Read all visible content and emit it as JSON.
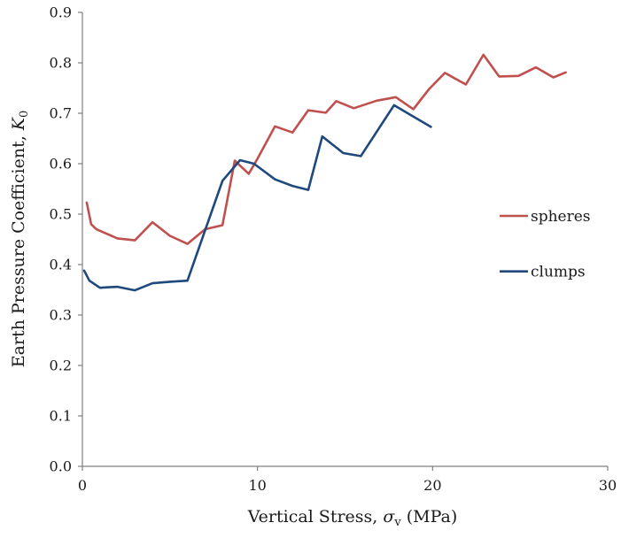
{
  "chart_data": {
    "type": "line",
    "xlabel": {
      "text": "Vertical Stress, ",
      "symbol": "σ",
      "subscript": "v",
      "unit": " (MPa)"
    },
    "ylabel": {
      "text": "Earth Pressure Coefficient, ",
      "symbol": "K",
      "subscript": "0"
    },
    "xlim": [
      0,
      30
    ],
    "ylim": [
      0,
      0.9
    ],
    "x_ticks": [
      0,
      10,
      20,
      30
    ],
    "x_tick_labels": [
      "0",
      "10",
      "20",
      "30"
    ],
    "y_ticks": [
      0,
      0.1,
      0.2,
      0.3,
      0.4,
      0.5,
      0.6,
      0.7,
      0.8,
      0.9
    ],
    "y_tick_labels": [
      "0.0",
      "0.1",
      "0.2",
      "0.3",
      "0.4",
      "0.5",
      "0.6",
      "0.7",
      "0.8",
      "0.9"
    ],
    "grid": false,
    "legend_position": "right",
    "series": [
      {
        "name": "spheres",
        "color": "#c0504d",
        "points": [
          [
            0.25,
            0.523
          ],
          [
            0.5,
            0.48
          ],
          [
            0.8,
            0.47
          ],
          [
            1.0,
            0.467
          ],
          [
            2.0,
            0.452
          ],
          [
            3.0,
            0.448
          ],
          [
            4.0,
            0.484
          ],
          [
            5.0,
            0.457
          ],
          [
            6.0,
            0.441
          ],
          [
            7.0,
            0.47
          ],
          [
            8.0,
            0.478
          ],
          [
            8.7,
            0.606
          ],
          [
            9.5,
            0.58
          ],
          [
            10.0,
            0.61
          ],
          [
            11.0,
            0.674
          ],
          [
            12.0,
            0.662
          ],
          [
            12.9,
            0.706
          ],
          [
            13.9,
            0.701
          ],
          [
            14.5,
            0.724
          ],
          [
            15.5,
            0.71
          ],
          [
            16.8,
            0.725
          ],
          [
            17.9,
            0.732
          ],
          [
            18.9,
            0.708
          ],
          [
            19.8,
            0.748
          ],
          [
            20.7,
            0.78
          ],
          [
            21.9,
            0.757
          ],
          [
            22.9,
            0.816
          ],
          [
            23.8,
            0.773
          ],
          [
            24.9,
            0.774
          ],
          [
            25.9,
            0.791
          ],
          [
            26.9,
            0.771
          ],
          [
            27.6,
            0.781
          ]
        ]
      },
      {
        "name": "clumps",
        "color": "#1f497d",
        "points": [
          [
            0.1,
            0.388
          ],
          [
            0.4,
            0.368
          ],
          [
            1.0,
            0.354
          ],
          [
            2.0,
            0.356
          ],
          [
            3.0,
            0.349
          ],
          [
            4.0,
            0.363
          ],
          [
            5.0,
            0.366
          ],
          [
            6.0,
            0.368
          ],
          [
            8.0,
            0.566
          ],
          [
            9.0,
            0.607
          ],
          [
            9.8,
            0.6
          ],
          [
            11.0,
            0.569
          ],
          [
            12.0,
            0.556
          ],
          [
            12.9,
            0.548
          ],
          [
            13.7,
            0.654
          ],
          [
            14.9,
            0.621
          ],
          [
            15.9,
            0.615
          ],
          [
            17.8,
            0.716
          ],
          [
            19.9,
            0.673
          ]
        ]
      }
    ]
  }
}
